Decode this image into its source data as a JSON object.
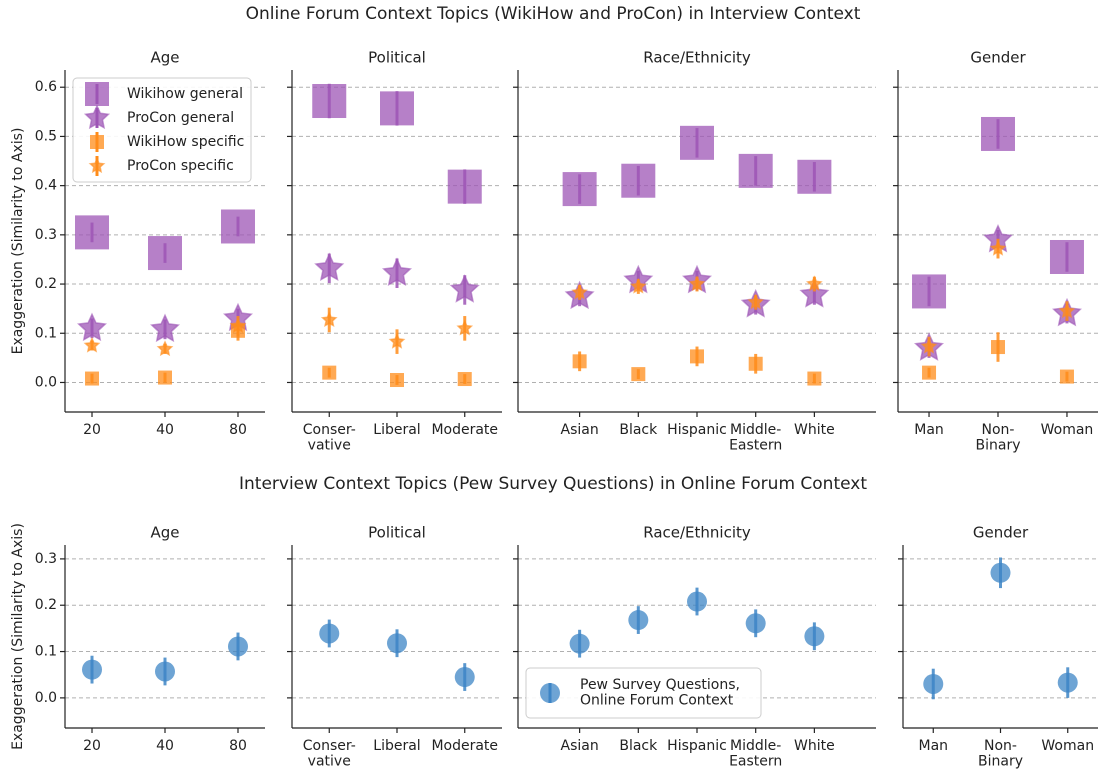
{
  "chart_data": [
    {
      "type": "errorbar",
      "title": "Online Forum Context Topics (WikiHow and ProCon) in Interview Context",
      "ylabel": "Exaggeration (Similarity to Axis)",
      "ylim": [
        -0.06,
        0.635
      ],
      "yticks": [
        {
          "value": 0,
          "label": "0.0"
        },
        0.1,
        0.2,
        0.3,
        0.4,
        0.5,
        0.6
      ],
      "grid": true,
      "legend": "upper left",
      "legend_panel": 0,
      "series": [
        {
          "name": "Wikihow general",
          "color": "#9d55b5",
          "marker": "square"
        },
        {
          "name": "ProCon general",
          "color": "#9d55b5",
          "marker": "star"
        },
        {
          "name": "WikiHow specific",
          "color": "#ff8c1a",
          "marker": "square"
        },
        {
          "name": "ProCon specific",
          "color": "#ff8c1a",
          "marker": "star"
        }
      ],
      "panels": [
        {
          "title": "Age",
          "categories": [
            "20",
            "40",
            "80"
          ],
          "series": [
            {
              "values": [
                0.305,
                0.263,
                0.317
              ],
              "errors": [
                0.02,
                0.02,
                0.02
              ]
            },
            {
              "values": [
                0.11,
                0.108,
                0.13
              ],
              "errors": [
                0.02,
                0.02,
                0.02
              ]
            },
            {
              "values": [
                0.008,
                0.01,
                0.105
              ],
              "errors": [
                0.01,
                0.01,
                0.02
              ]
            },
            {
              "values": [
                0.075,
                0.068,
                0.115
              ],
              "errors": [
                0.01,
                0.01,
                0.02
              ]
            }
          ]
        },
        {
          "title": "Political",
          "categories": [
            "Conser-\nvative",
            "Liberal",
            "Moderate"
          ],
          "series": [
            {
              "values": [
                0.572,
                0.557,
                0.398
              ],
              "errors": [
                0.035,
                0.035,
                0.035
              ]
            },
            {
              "values": [
                0.232,
                0.222,
                0.188
              ],
              "errors": [
                0.03,
                0.03,
                0.03
              ]
            },
            {
              "values": [
                0.02,
                0.005,
                0.007
              ],
              "errors": [
                0.01,
                0.01,
                0.01
              ]
            },
            {
              "values": [
                0.127,
                0.083,
                0.11
              ],
              "errors": [
                0.025,
                0.025,
                0.025
              ]
            }
          ]
        },
        {
          "title": "Race/Ethnicity",
          "categories": [
            "Asian",
            "Black",
            "Hispanic",
            "Middle-\nEastern",
            "White"
          ],
          "series": [
            {
              "values": [
                0.393,
                0.41,
                0.487,
                0.43,
                0.418
              ],
              "errors": [
                0.03,
                0.03,
                0.03,
                0.03,
                0.03
              ]
            },
            {
              "values": [
                0.175,
                0.207,
                0.207,
                0.158,
                0.178
              ],
              "errors": [
                0.02,
                0.02,
                0.02,
                0.02,
                0.02
              ]
            },
            {
              "values": [
                0.043,
                0.017,
                0.053,
                0.038,
                0.008
              ],
              "errors": [
                0.02,
                0.01,
                0.02,
                0.02,
                0.01
              ]
            },
            {
              "values": [
                0.183,
                0.195,
                0.2,
                0.163,
                0.2
              ],
              "errors": [
                0.015,
                0.015,
                0.015,
                0.015,
                0.015
              ]
            }
          ]
        },
        {
          "title": "Gender",
          "categories": [
            "Man",
            "Non-\nBinary",
            "Woman"
          ],
          "series": [
            {
              "values": [
                0.185,
                0.505,
                0.255
              ],
              "errors": [
                0.03,
                0.03,
                0.03
              ]
            },
            {
              "values": [
                0.07,
                0.29,
                0.14
              ],
              "errors": [
                0.02,
                0.02,
                0.02
              ]
            },
            {
              "values": [
                0.02,
                0.072,
                0.012
              ],
              "errors": [
                0.01,
                0.03,
                0.01
              ]
            },
            {
              "values": [
                0.073,
                0.272,
                0.145
              ],
              "errors": [
                0.02,
                0.02,
                0.02
              ]
            }
          ]
        }
      ]
    },
    {
      "type": "errorbar",
      "title": "Interview Context Topics (Pew Survey Questions) in Online Forum Context",
      "ylabel": "Exaggeration (Similarity to Axis)",
      "ylim": [
        -0.065,
        0.33
      ],
      "yticks": [
        {
          "value": 0,
          "label": "0.0"
        },
        0.1,
        0.2,
        0.3
      ],
      "grid": true,
      "legend": "lower left",
      "legend_panel": 2,
      "series": [
        {
          "name": "Pew Survey Questions,\nOnline Forum Context",
          "color": "#3d85c6",
          "marker": "circle"
        }
      ],
      "panels": [
        {
          "title": "Age",
          "categories": [
            "20",
            "40",
            "80"
          ],
          "series": [
            {
              "values": [
                0.061,
                0.057,
                0.111
              ],
              "errors": [
                0.03,
                0.03,
                0.03
              ]
            }
          ]
        },
        {
          "title": "Political",
          "categories": [
            "Conser-\nvative",
            "Liberal",
            "Moderate"
          ],
          "series": [
            {
              "values": [
                0.139,
                0.118,
                0.045
              ],
              "errors": [
                0.03,
                0.03,
                0.03
              ]
            }
          ]
        },
        {
          "title": "Race/Ethnicity",
          "categories": [
            "Asian",
            "Black",
            "Hispanic",
            "Middle-\nEastern",
            "White"
          ],
          "series": [
            {
              "values": [
                0.117,
                0.168,
                0.208,
                0.161,
                0.133
              ],
              "errors": [
                0.03,
                0.03,
                0.03,
                0.03,
                0.03
              ]
            }
          ]
        },
        {
          "title": "Gender",
          "categories": [
            "Man",
            "Non-\nBinary",
            "Woman"
          ],
          "series": [
            {
              "values": [
                0.03,
                0.27,
                0.033
              ],
              "errors": [
                0.033,
                0.033,
                0.033
              ]
            }
          ]
        }
      ]
    }
  ]
}
